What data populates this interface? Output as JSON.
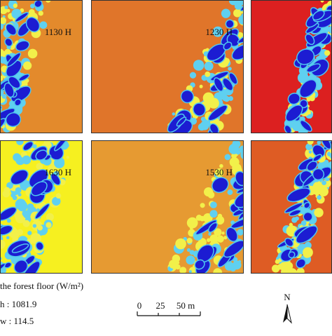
{
  "panels": [
    {
      "label": "1130 H"
    },
    {
      "label": "1230 H"
    },
    {
      "label": ""
    },
    {
      "label": "1630 H"
    },
    {
      "label": "1530 H"
    },
    {
      "label": ""
    }
  ],
  "legend": {
    "title": "the forest floor (W/m²)",
    "high": "h : 1081.9",
    "low": "w : 114.5"
  },
  "scale_bar": {
    "labels": [
      "0",
      "25",
      "50 m"
    ]
  },
  "north": "N"
}
